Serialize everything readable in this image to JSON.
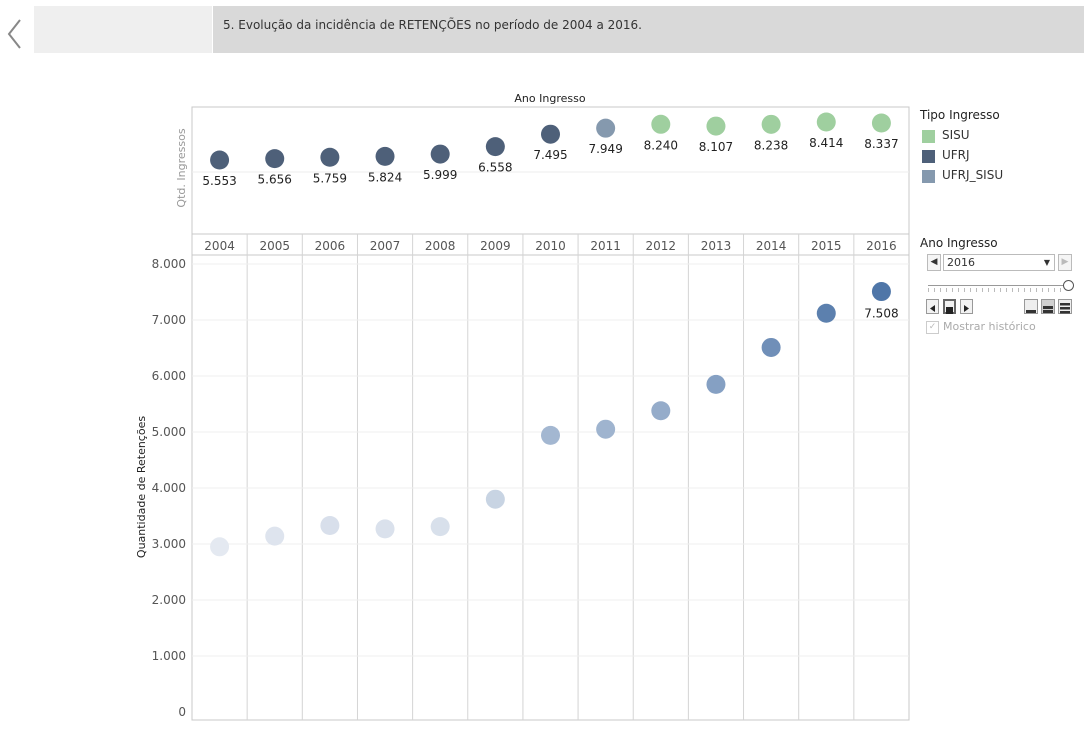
{
  "story": {
    "caption": "5. Evolução da incidência de RETENÇÕES no período de 2004 a 2016."
  },
  "legend": {
    "title": "Tipo Ingresso",
    "items": [
      {
        "label": "SISU",
        "color": "#9fcf9f"
      },
      {
        "label": "UFRJ",
        "color": "#4e6079"
      },
      {
        "label": "UFRJ_SISU",
        "color": "#8599ae"
      }
    ]
  },
  "filter": {
    "title": "Ano Ingresso",
    "selected": "2016",
    "history_label": "Mostrar histórico"
  },
  "chart_data": [
    {
      "type": "scatter",
      "title": "Ano Ingresso",
      "ylabel": "Qtd. Ingressos",
      "x": [
        "2004",
        "2005",
        "2006",
        "2007",
        "2008",
        "2009",
        "2010",
        "2011",
        "2012",
        "2013",
        "2014",
        "2015",
        "2016"
      ],
      "values": [
        5553,
        5656,
        5759,
        5824,
        5999,
        6558,
        7495,
        7949,
        8240,
        8107,
        8238,
        8414,
        8337
      ],
      "labels": [
        "5.553",
        "5.656",
        "5.759",
        "5.824",
        "5.999",
        "6.558",
        "7.495",
        "7.949",
        "8.240",
        "8.107",
        "8.238",
        "8.414",
        "8.337"
      ],
      "types": [
        "UFRJ",
        "UFRJ",
        "UFRJ",
        "UFRJ",
        "UFRJ",
        "UFRJ",
        "UFRJ",
        "UFRJ_SISU",
        "SISU",
        "SISU",
        "SISU",
        "SISU",
        "SISU"
      ]
    },
    {
      "type": "scatter",
      "ylabel": "Quantidade de Retenções",
      "x": [
        "2004",
        "2005",
        "2006",
        "2007",
        "2008",
        "2009",
        "2010",
        "2011",
        "2012",
        "2013",
        "2014",
        "2015",
        "2016"
      ],
      "values": [
        2950,
        3140,
        3330,
        3270,
        3310,
        3800,
        4940,
        5050,
        5380,
        5850,
        6510,
        7120,
        7508
      ],
      "point_labels": {
        "2016": "7.508"
      },
      "ylim": [
        0,
        8000
      ],
      "yticks": [
        0,
        1000,
        2000,
        3000,
        4000,
        5000,
        6000,
        7000,
        8000
      ],
      "ytick_labels": [
        "0",
        "1.000",
        "2.000",
        "3.000",
        "4.000",
        "5.000",
        "6.000",
        "7.000",
        "8.000"
      ],
      "color_light": "#e4e9f1",
      "color_dark": "#4f76a8"
    }
  ]
}
